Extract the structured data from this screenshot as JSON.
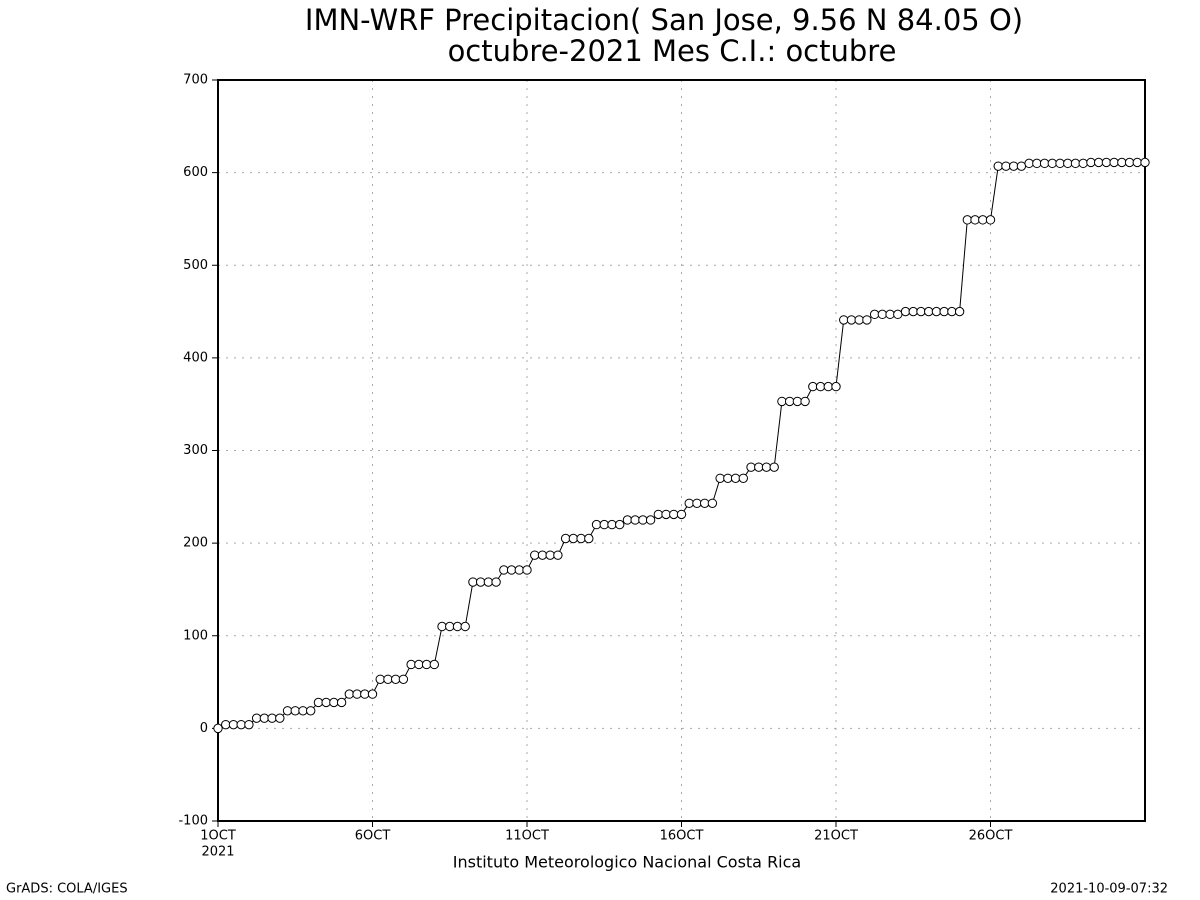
{
  "chart_data": {
    "type": "line",
    "title": "IMN-WRF  Precipitacion( San Jose, 9.56  N 84.05  O)",
    "subtitle": "octubre-2021 Mes C.I.: octubre",
    "x_sublabel": "2021",
    "xlabel": "Instituto Meteorologico Nacional Costa Rica",
    "footer_left": "GrADS: COLA/IGES",
    "footer_right": "2021-10-09-07:32",
    "color": "#000000",
    "marker_fill": "#ffffff",
    "grid": true,
    "xlim": [
      0,
      30
    ],
    "ylim": [
      -100,
      700
    ],
    "yticks": [
      -100,
      0,
      100,
      200,
      300,
      400,
      500,
      600,
      700
    ],
    "xticks": [
      {
        "value": 0,
        "label": "1OCT"
      },
      {
        "value": 5,
        "label": "6OCT"
      },
      {
        "value": 10,
        "label": "11OCT"
      },
      {
        "value": 15,
        "label": "16OCT"
      },
      {
        "value": 20,
        "label": "21OCT"
      },
      {
        "value": 25,
        "label": "26OCT"
      }
    ],
    "x": [
      0,
      0.25,
      0.5,
      0.75,
      1,
      1.25,
      1.5,
      1.75,
      2,
      2.25,
      2.5,
      2.75,
      3,
      3.25,
      3.5,
      3.75,
      4,
      4.25,
      4.5,
      4.75,
      5,
      5.25,
      5.5,
      5.75,
      6,
      6.25,
      6.5,
      6.75,
      7,
      7.25,
      7.5,
      7.75,
      8,
      8.25,
      8.5,
      8.75,
      9,
      9.25,
      9.5,
      9.75,
      10,
      10.25,
      10.5,
      10.75,
      11,
      11.25,
      11.5,
      11.75,
      12,
      12.25,
      12.5,
      12.75,
      13,
      13.25,
      13.5,
      13.75,
      14,
      14.25,
      14.5,
      14.75,
      15,
      15.25,
      15.5,
      15.75,
      16,
      16.25,
      16.5,
      16.75,
      17,
      17.25,
      17.5,
      17.75,
      18,
      18.25,
      18.5,
      18.75,
      19,
      19.25,
      19.5,
      19.75,
      20,
      20.25,
      20.5,
      20.75,
      21,
      21.25,
      21.5,
      21.75,
      22,
      22.25,
      22.5,
      22.75,
      23,
      23.25,
      23.5,
      23.75,
      24,
      24.25,
      24.5,
      24.75,
      25,
      25.25,
      25.5,
      25.75,
      26,
      26.25,
      26.5,
      26.75,
      27,
      27.25,
      27.5,
      27.75,
      28,
      28.25,
      28.5,
      28.75,
      29,
      29.25,
      29.5,
      29.75,
      30
    ],
    "values": [
      0,
      4,
      4,
      4,
      4,
      11,
      11,
      11,
      11,
      19,
      19,
      19,
      19,
      28,
      28,
      28,
      28,
      37,
      37,
      37,
      37,
      53,
      53,
      53,
      53,
      69,
      69,
      69,
      69,
      110,
      110,
      110,
      110,
      158,
      158,
      158,
      158,
      171,
      171,
      171,
      171,
      187,
      187,
      187,
      187,
      205,
      205,
      205,
      205,
      220,
      220,
      220,
      220,
      225,
      225,
      225,
      225,
      231,
      231,
      231,
      231,
      243,
      243,
      243,
      243,
      270,
      270,
      270,
      270,
      282,
      282,
      282,
      282,
      353,
      353,
      353,
      353,
      369,
      369,
      369,
      369,
      441,
      441,
      441,
      441,
      447,
      447,
      447,
      447,
      450,
      450,
      450,
      450,
      450,
      450,
      450,
      450,
      549,
      549,
      549,
      549,
      607,
      607,
      607,
      607,
      610,
      610,
      610,
      610,
      610,
      610,
      610,
      610,
      611,
      611,
      611,
      611,
      611,
      611,
      611,
      611
    ]
  }
}
